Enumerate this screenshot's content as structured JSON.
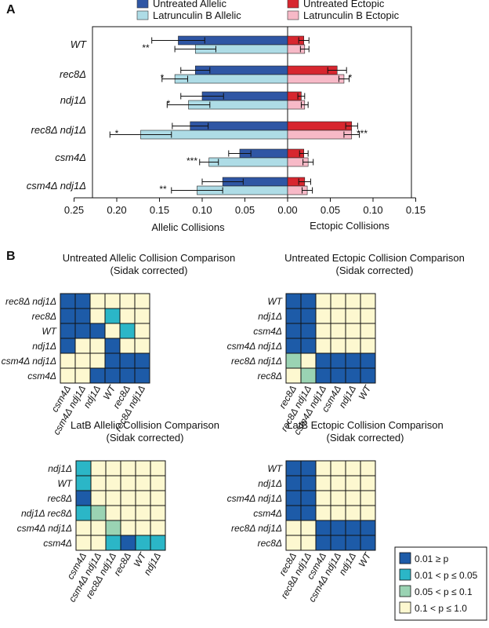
{
  "panel_a_letter": "A",
  "panel_b_letter": "B",
  "colors": {
    "untreated_allelic": "#2f56a4",
    "latb_allelic": "#aedce6",
    "untreated_ectopic": "#d7262f",
    "latb_ectopic": "#f7b9c7",
    "p_le_001": "#1d5ba8",
    "p_001_005": "#2bb6c7",
    "p_005_01": "#9ad3b3",
    "p_01_10": "#fdf8d0"
  },
  "chart_data": [
    {
      "type": "bar",
      "orientation": "horizontal",
      "categories": [
        "WT",
        "rec8Δ",
        "ndj1Δ",
        "rec8Δ ndj1Δ",
        "csm4Δ",
        "csm4Δ ndj1Δ"
      ],
      "series": [
        {
          "name": "Untreated Allelic",
          "side": "left",
          "values": [
            0.128,
            0.108,
            0.1,
            0.114,
            0.056,
            0.076
          ],
          "err": [
            0.031,
            0.017,
            0.025,
            0.021,
            0.013,
            0.024
          ]
        },
        {
          "name": "Latrunculin B Allelic",
          "side": "left",
          "values": [
            0.108,
            0.132,
            0.116,
            0.172,
            0.092,
            0.106
          ],
          "err": [
            0.024,
            0.015,
            0.025,
            0.036,
            0.011,
            0.03
          ]
        },
        {
          "name": "Untreated Ectopic",
          "side": "right",
          "values": [
            0.019,
            0.058,
            0.016,
            0.075,
            0.019,
            0.02
          ],
          "err": [
            0.006,
            0.011,
            0.004,
            0.007,
            0.005,
            0.007
          ]
        },
        {
          "name": "Latrunculin B Ectopic",
          "side": "right",
          "values": [
            0.02,
            0.066,
            0.02,
            0.075,
            0.024,
            0.023
          ],
          "err": [
            0.005,
            0.006,
            0.004,
            0.009,
            0.006,
            0.006
          ]
        }
      ],
      "significance_left": [
        "**",
        "*",
        "*",
        "*",
        "***",
        "**"
      ],
      "significance_right": [
        "",
        "*",
        "",
        "***",
        "",
        ""
      ],
      "x_ticks": [
        "0.25",
        "0.20",
        "0.15",
        "0.10",
        "0.05",
        "0.00",
        "0.05",
        "0.10",
        "0.15"
      ],
      "xlim_left": [
        0.25,
        0
      ],
      "xlim_right": [
        0,
        0.15
      ],
      "xlabel_left": "Allelic Collisions",
      "xlabel_right": "Ectopic Collisions",
      "legend": [
        "Untreated Allelic",
        "Latrunculin B Allelic",
        "Untreated Ectopic",
        "Latrunculin B Ectopic"
      ]
    },
    {
      "type": "heatmap",
      "title": "Untreated Allelic Collision Comparison",
      "subtitle": "(Sidak corrected)",
      "row_labels": [
        "rec8Δ ndj1Δ",
        "rec8Δ",
        "WT",
        "ndj1Δ",
        "csm4Δ ndj1Δ",
        "csm4Δ"
      ],
      "col_labels": [
        "csm4Δ",
        "csm4Δ ndj1Δ",
        "ndj1Δ",
        "WT",
        "rec8Δ",
        "rec8Δ ndj1Δ"
      ],
      "cells": [
        [
          1,
          1,
          0,
          0,
          0,
          0
        ],
        [
          1,
          1,
          0,
          2,
          0,
          0
        ],
        [
          1,
          1,
          1,
          0,
          2,
          0
        ],
        [
          1,
          0,
          0,
          1,
          0,
          0
        ],
        [
          0,
          0,
          0,
          1,
          1,
          1
        ],
        [
          0,
          0,
          1,
          1,
          1,
          1
        ]
      ]
    },
    {
      "type": "heatmap",
      "title": "Untreated Ectopic Collision Comparison",
      "subtitle": "(Sidak corrected)",
      "row_labels": [
        "WT",
        "ndj1Δ",
        "csm4Δ",
        "csm4Δ ndj1Δ",
        "rec8Δ ndj1Δ",
        "rec8Δ"
      ],
      "col_labels": [
        "rec8Δ",
        "rec8Δ ndj1Δ",
        "csm4Δ ndj1Δ",
        "csm4Δ",
        "ndj1Δ",
        "WT"
      ],
      "cells": [
        [
          1,
          1,
          0,
          0,
          0,
          0
        ],
        [
          1,
          1,
          0,
          0,
          0,
          0
        ],
        [
          1,
          1,
          0,
          0,
          0,
          0
        ],
        [
          1,
          1,
          0,
          0,
          0,
          0
        ],
        [
          3,
          0,
          1,
          1,
          1,
          1
        ],
        [
          0,
          3,
          1,
          1,
          1,
          1
        ]
      ]
    },
    {
      "type": "heatmap",
      "title": "LatB Allelic Collision Comparison",
      "subtitle": "(Sidak corrected)",
      "row_labels": [
        "ndj1Δ",
        "WT",
        "rec8Δ",
        "ndj1Δ rec8Δ",
        "csm4Δ ndj1Δ",
        "csm4Δ"
      ],
      "col_labels": [
        "csm4Δ",
        "csm4Δ ndj1Δ",
        "rec8Δ ndj1Δ",
        "rec8Δ",
        "WT",
        "ndj1Δ"
      ],
      "cells": [
        [
          2,
          0,
          0,
          0,
          0,
          0
        ],
        [
          2,
          0,
          0,
          0,
          0,
          0
        ],
        [
          1,
          0,
          0,
          0,
          0,
          0
        ],
        [
          2,
          3,
          0,
          0,
          0,
          0
        ],
        [
          0,
          0,
          3,
          0,
          0,
          0
        ],
        [
          0,
          0,
          2,
          1,
          2,
          2
        ]
      ]
    },
    {
      "type": "heatmap",
      "title": "LatB Ectopic Collision Comparison",
      "subtitle": "(Sidak corrected)",
      "row_labels": [
        "WT",
        "ndj1Δ",
        "csm4Δ ndj1Δ",
        "csm4Δ",
        "rec8Δ ndj1Δ",
        "rec8Δ"
      ],
      "col_labels": [
        "rec8Δ",
        "rec8Δ ndj1Δ",
        "csm4Δ",
        "csm4Δ ndj1Δ",
        "ndj1Δ",
        "WT"
      ],
      "cells": [
        [
          1,
          1,
          0,
          0,
          0,
          0
        ],
        [
          1,
          1,
          0,
          0,
          0,
          0
        ],
        [
          1,
          1,
          0,
          0,
          0,
          0
        ],
        [
          1,
          1,
          0,
          0,
          0,
          0
        ],
        [
          0,
          0,
          1,
          1,
          1,
          1
        ],
        [
          0,
          0,
          1,
          1,
          1,
          1
        ]
      ]
    }
  ],
  "key": [
    {
      "label": "0.01 ≥ p",
      "color": "#1d5ba8"
    },
    {
      "label": "0.01 < p ≤ 0.05",
      "color": "#2bb6c7"
    },
    {
      "label": "0.05 < p ≤ 0.1",
      "color": "#9ad3b3"
    },
    {
      "label": "0.1 < p ≤ 1.0",
      "color": "#fdf8d0"
    }
  ]
}
